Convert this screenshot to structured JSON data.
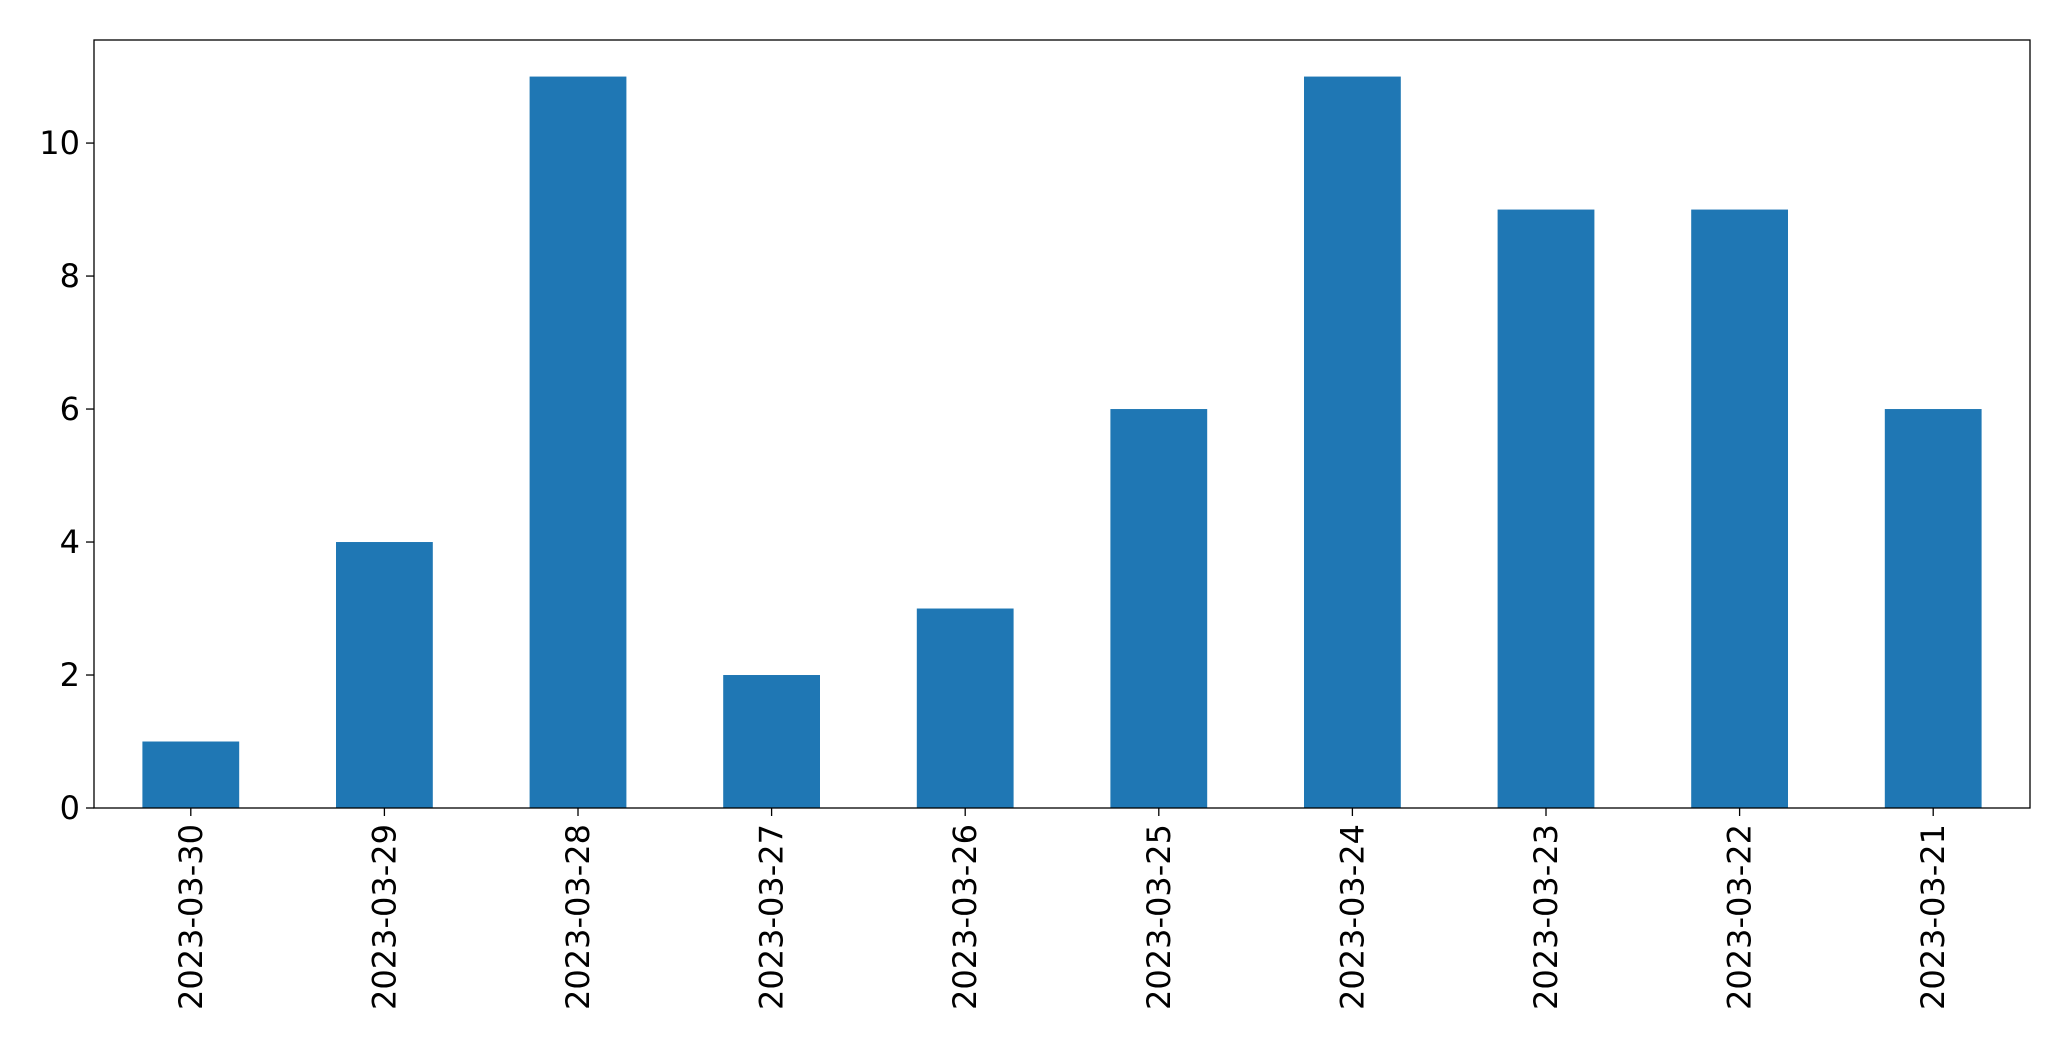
{
  "chart_data": {
    "type": "bar",
    "categories": [
      "2023-03-30",
      "2023-03-29",
      "2023-03-28",
      "2023-03-27",
      "2023-03-26",
      "2023-03-25",
      "2023-03-24",
      "2023-03-23",
      "2023-03-22",
      "2023-03-21"
    ],
    "values": [
      1,
      4,
      11,
      2,
      3,
      6,
      11,
      9,
      9,
      6
    ],
    "color": "#1f77b4",
    "ylim": [
      0,
      11.55
    ],
    "yticks": [
      0,
      2,
      4,
      6,
      8,
      10
    ],
    "grid": false
  }
}
